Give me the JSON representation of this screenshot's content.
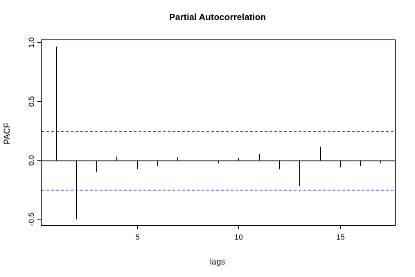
{
  "chart_data": {
    "type": "bar",
    "title": "Partial Autocorrelation",
    "xlabel": "lags",
    "ylabel": "PACF",
    "xlim": [
      0.3,
      17.7
    ],
    "ylim": [
      -0.55,
      1.02
    ],
    "xticks": [
      5,
      10,
      15
    ],
    "yticks": [
      -0.5,
      0.0,
      0.5,
      1.0
    ],
    "ytick_labels": [
      "-0.5",
      "0.0",
      "0.5",
      "1.0"
    ],
    "confidence_band": [
      -0.25,
      0.25
    ],
    "grid": false,
    "lags": [
      1,
      2,
      3,
      4,
      5,
      6,
      7,
      8,
      9,
      10,
      11,
      12,
      13,
      14,
      15,
      16,
      17
    ],
    "values": [
      0.965,
      -0.5,
      -0.1,
      0.03,
      -0.075,
      -0.05,
      0.025,
      -0.005,
      -0.025,
      0.02,
      0.055,
      -0.075,
      -0.22,
      0.115,
      -0.06,
      -0.05,
      -0.025
    ],
    "colors": {
      "bars": "#000000",
      "confidence": "#0000cc"
    }
  }
}
